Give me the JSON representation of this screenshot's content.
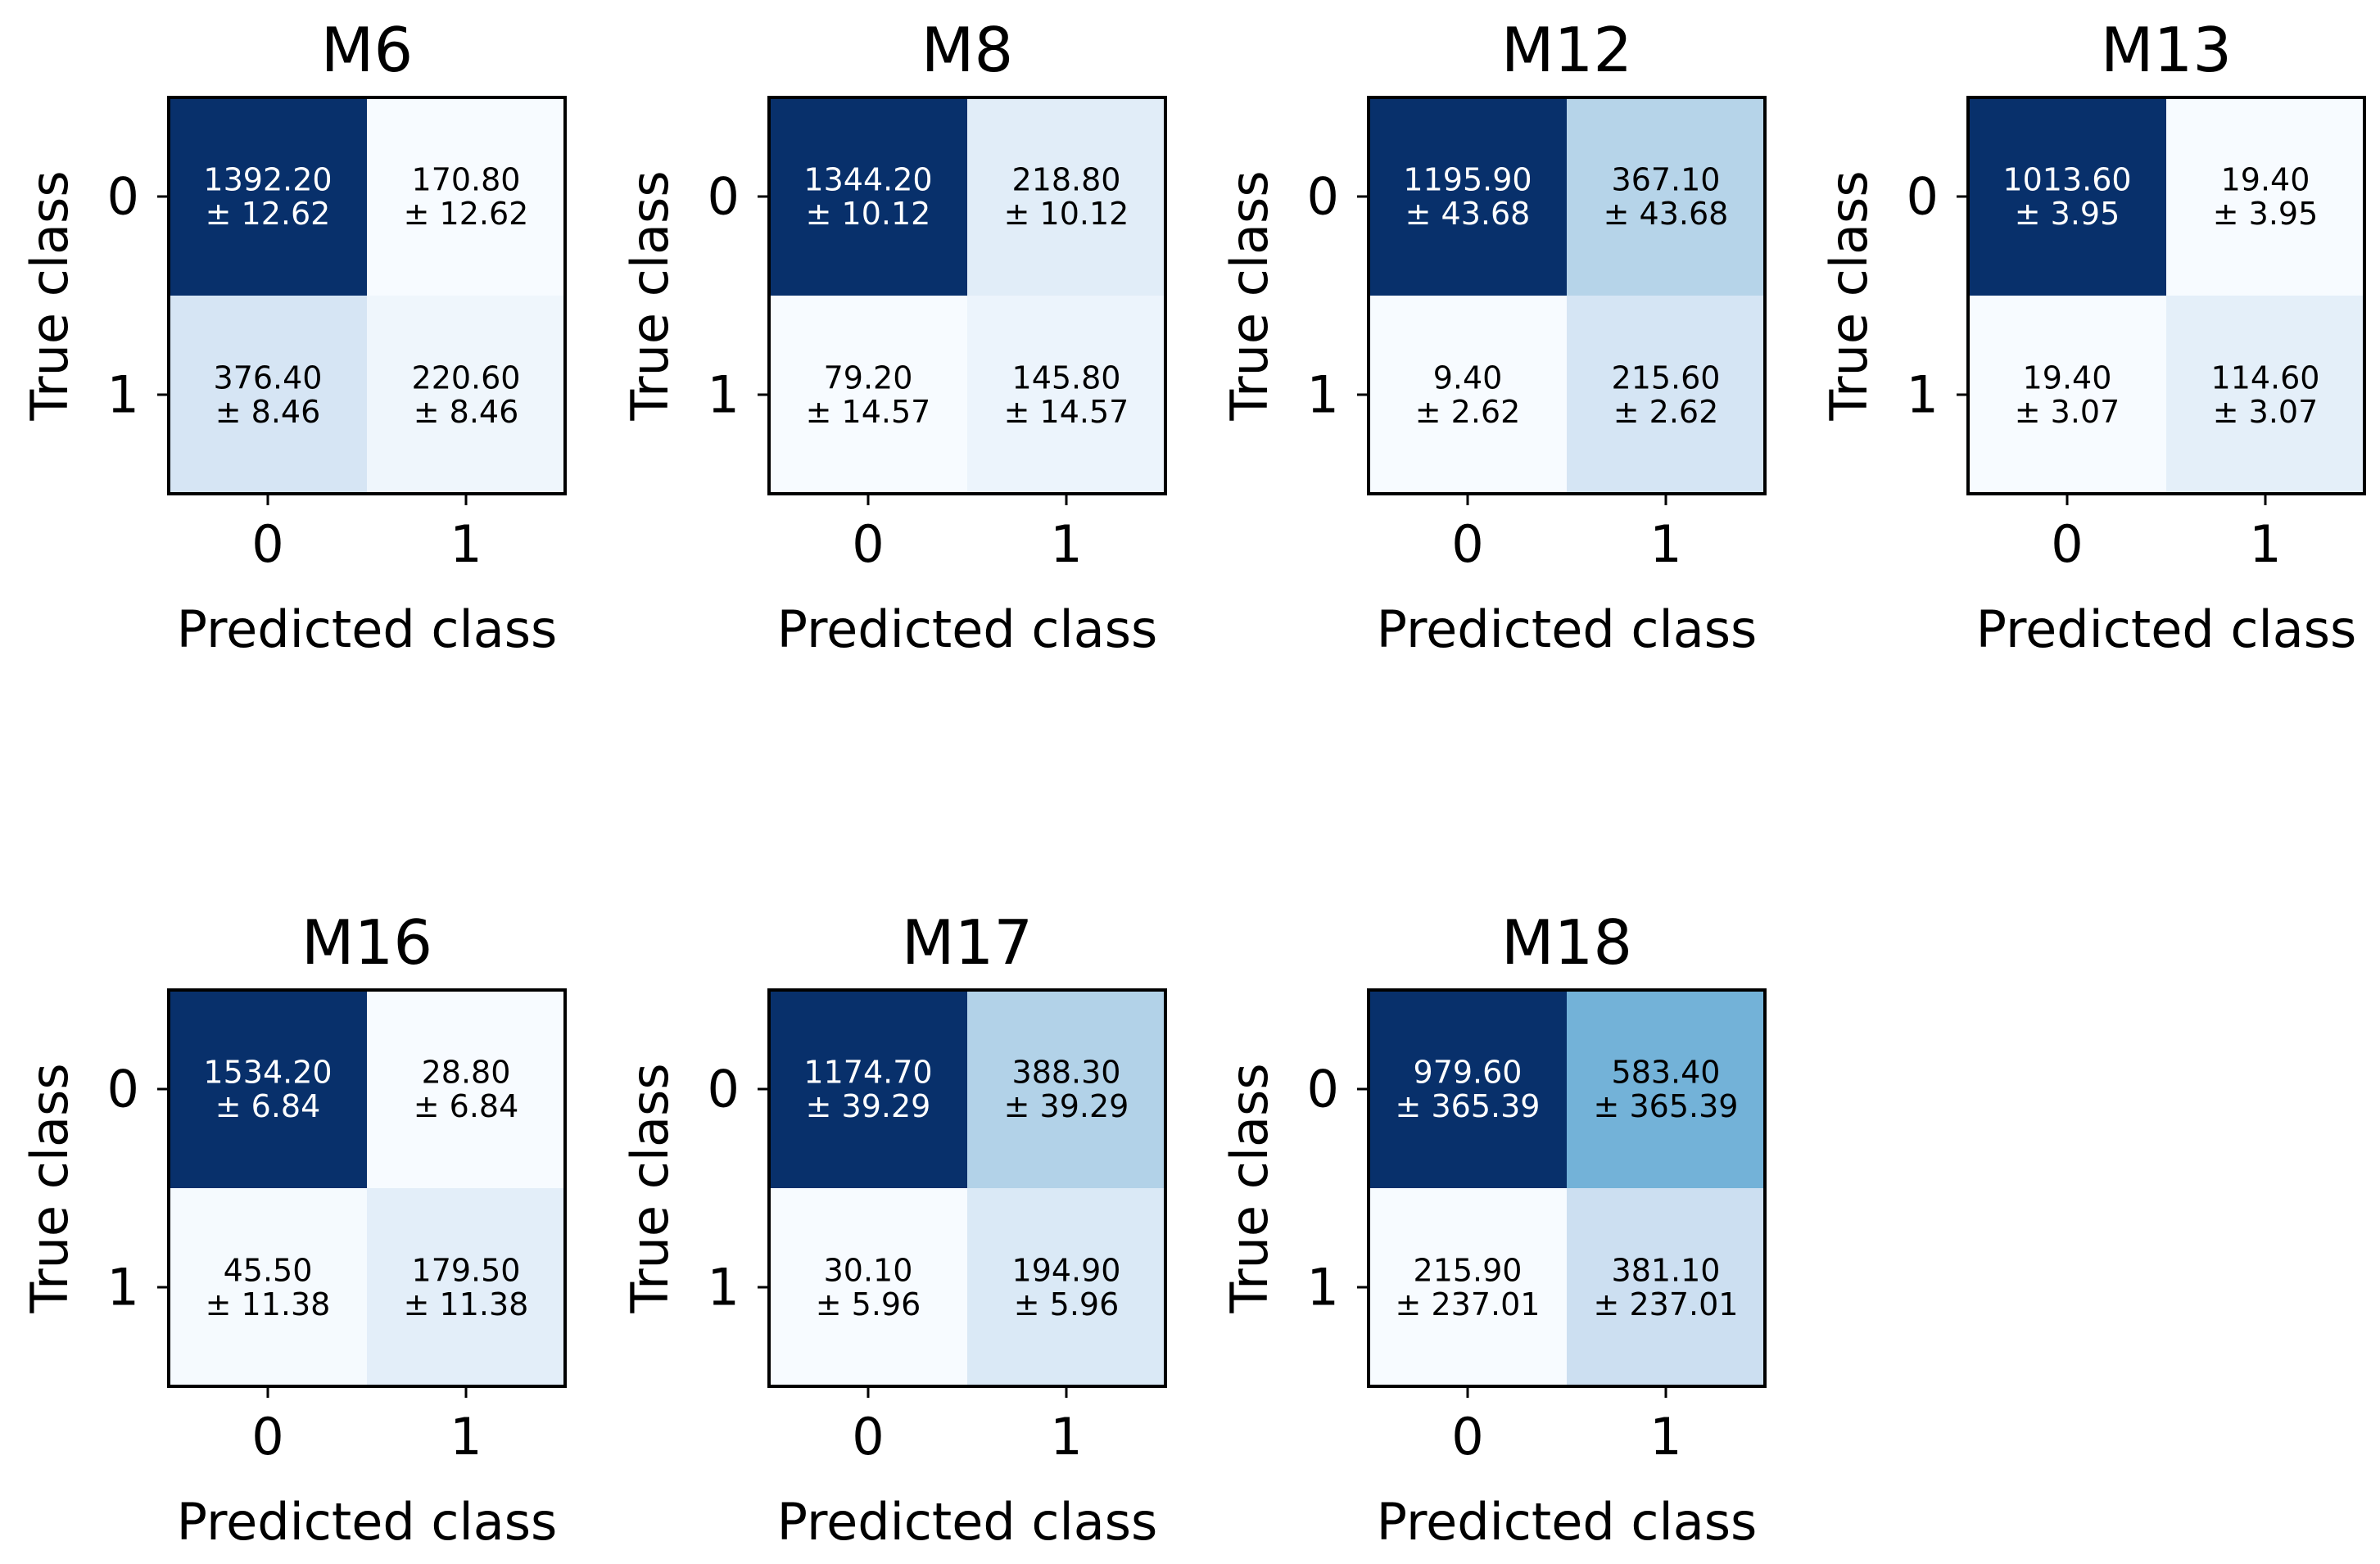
{
  "chart_data": [
    {
      "type": "heatmap",
      "title": "M6",
      "xlabel": "Predicted class",
      "ylabel": "True class",
      "x_categories": [
        "0",
        "1"
      ],
      "y_categories": [
        "0",
        "1"
      ],
      "colormap": "Blues",
      "values": [
        [
          1392.2,
          170.8
        ],
        [
          376.4,
          220.6
        ]
      ],
      "errors": [
        [
          12.62,
          12.62
        ],
        [
          8.46,
          8.46
        ]
      ],
      "cell_labels": [
        [
          "1392.20\n± 12.62",
          "170.80\n± 12.62"
        ],
        [
          "376.40\n± 8.46",
          "220.60\n± 8.46"
        ]
      ]
    },
    {
      "type": "heatmap",
      "title": "M8",
      "xlabel": "Predicted class",
      "ylabel": "True class",
      "x_categories": [
        "0",
        "1"
      ],
      "y_categories": [
        "0",
        "1"
      ],
      "colormap": "Blues",
      "values": [
        [
          1344.2,
          218.8
        ],
        [
          79.2,
          145.8
        ]
      ],
      "errors": [
        [
          10.12,
          10.12
        ],
        [
          14.57,
          14.57
        ]
      ],
      "cell_labels": [
        [
          "1344.20\n± 10.12",
          "218.80\n± 10.12"
        ],
        [
          "79.20\n± 14.57",
          "145.80\n± 14.57"
        ]
      ]
    },
    {
      "type": "heatmap",
      "title": "M12",
      "xlabel": "Predicted class",
      "ylabel": "True class",
      "x_categories": [
        "0",
        "1"
      ],
      "y_categories": [
        "0",
        "1"
      ],
      "colormap": "Blues",
      "values": [
        [
          1195.9,
          367.1
        ],
        [
          9.4,
          215.6
        ]
      ],
      "errors": [
        [
          43.68,
          43.68
        ],
        [
          2.62,
          2.62
        ]
      ],
      "cell_labels": [
        [
          "1195.90\n± 43.68",
          "367.10\n± 43.68"
        ],
        [
          "9.40\n± 2.62",
          "215.60\n± 2.62"
        ]
      ]
    },
    {
      "type": "heatmap",
      "title": "M13",
      "xlabel": "Predicted class",
      "ylabel": "True class",
      "x_categories": [
        "0",
        "1"
      ],
      "y_categories": [
        "0",
        "1"
      ],
      "colormap": "Blues",
      "values": [
        [
          1013.6,
          19.4
        ],
        [
          19.4,
          114.6
        ]
      ],
      "errors": [
        [
          3.95,
          3.95
        ],
        [
          3.07,
          3.07
        ]
      ],
      "cell_labels": [
        [
          "1013.60\n± 3.95",
          "19.40\n± 3.95"
        ],
        [
          "19.40\n± 3.07",
          "114.60\n± 3.07"
        ]
      ]
    },
    {
      "type": "heatmap",
      "title": "M16",
      "xlabel": "Predicted class",
      "ylabel": "True class",
      "x_categories": [
        "0",
        "1"
      ],
      "y_categories": [
        "0",
        "1"
      ],
      "colormap": "Blues",
      "values": [
        [
          1534.2,
          28.8
        ],
        [
          45.5,
          179.5
        ]
      ],
      "errors": [
        [
          6.84,
          6.84
        ],
        [
          11.38,
          11.38
        ]
      ],
      "cell_labels": [
        [
          "1534.20\n± 6.84",
          "28.80\n± 6.84"
        ],
        [
          "45.50\n± 11.38",
          "179.50\n± 11.38"
        ]
      ]
    },
    {
      "type": "heatmap",
      "title": "M17",
      "xlabel": "Predicted class",
      "ylabel": "True class",
      "x_categories": [
        "0",
        "1"
      ],
      "y_categories": [
        "0",
        "1"
      ],
      "colormap": "Blues",
      "values": [
        [
          1174.7,
          388.3
        ],
        [
          30.1,
          194.9
        ]
      ],
      "errors": [
        [
          39.29,
          39.29
        ],
        [
          5.96,
          5.96
        ]
      ],
      "cell_labels": [
        [
          "1174.70\n± 39.29",
          "388.30\n± 39.29"
        ],
        [
          "30.10\n± 5.96",
          "194.90\n± 5.96"
        ]
      ]
    },
    {
      "type": "heatmap",
      "title": "M18",
      "xlabel": "Predicted class",
      "ylabel": "True class",
      "x_categories": [
        "0",
        "1"
      ],
      "y_categories": [
        "0",
        "1"
      ],
      "colormap": "Blues",
      "values": [
        [
          979.6,
          583.4
        ],
        [
          215.9,
          381.1
        ]
      ],
      "errors": [
        [
          365.39,
          365.39
        ],
        [
          237.01,
          237.01
        ]
      ],
      "cell_labels": [
        [
          "979.60\n± 365.39",
          "583.40\n± 365.39"
        ],
        [
          "215.90\n± 237.01",
          "381.10\n± 237.01"
        ]
      ]
    }
  ]
}
